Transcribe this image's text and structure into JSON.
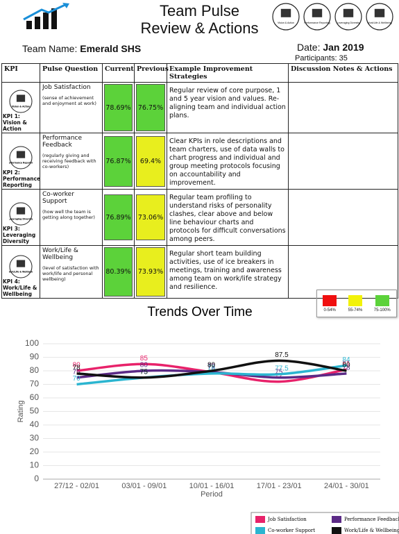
{
  "header": {
    "title_line1": "Team Pulse",
    "title_line2": "Review & Actions",
    "team_label": "Team Name:",
    "team_name": "Emerald SHS",
    "date_label": "Date:",
    "date": "Jan 2019",
    "participants_label": "Participants:",
    "participants": "35",
    "icons": [
      "Vision & Action",
      "Performance Reporting",
      "Leveraging Diversity",
      "Work/Life & Wellbeing"
    ]
  },
  "table": {
    "headers": [
      "KPI",
      "Pulse Question",
      "Current",
      "Previous",
      "Example Improvement Strategies",
      "Discussion Notes & Actions"
    ],
    "rows": [
      {
        "icon": "Vision & Action",
        "kpi": "KPI 1: Vision & Action",
        "question": "Job Satisfaction",
        "sub": "(sense of achievement and enjoyment at work)",
        "current": "78.69%",
        "current_color": "#5cd23a",
        "previous": "76.75%",
        "previous_color": "#5cd23a",
        "strategy": "Regular review of core purpose, 1 and 5 year vision and values. Re-aligning team and individual action plans.",
        "notes": ""
      },
      {
        "icon": "Performance Reporting",
        "kpi": "KPI 2: Performance Reporting",
        "question": "Performance Feedback",
        "sub": "(regularly giving and receiving feedback with co-workers)",
        "current": "76.87%",
        "current_color": "#5cd23a",
        "previous": "69.4%",
        "previous_color": "#e8ee1e",
        "strategy": "Clear KPIs in role descriptions and team charters, use of data walls to chart progress and individual and group meeting protocols focusing on accountability and improvement.",
        "notes": ""
      },
      {
        "icon": "Leveraging Diversity",
        "kpi": "KPI 3: Leveraging Diversity",
        "question": "Co-worker Support",
        "sub": "(how well the team is getting along together)",
        "current": "76.89%",
        "current_color": "#5cd23a",
        "previous": "73.06%",
        "previous_color": "#e8ee1e",
        "strategy": "Regular team profiling to understand risks of personality clashes, clear above and below line behaviour charts and protocols for difficult conversations among peers.",
        "notes": ""
      },
      {
        "icon": "Work/Life & Wellbeing",
        "kpi": "KPI 4: Work/Life & Wellbeing",
        "question": "Work/Life & Wellbeing",
        "sub": "(level of satisfaction with work/life and personal wellbeing)",
        "current": "80.39%",
        "current_color": "#5cd23a",
        "previous": "73.93%",
        "previous_color": "#e8ee1e",
        "strategy": "Regular short team building activities, use of ice breakers in meetings, training and awareness among team on work/life strategy and resilience.",
        "notes": ""
      }
    ]
  },
  "color_key": [
    {
      "label": "0-54%",
      "color": "#f01010"
    },
    {
      "label": "55-74%",
      "color": "#f2f20a"
    },
    {
      "label": "75-100%",
      "color": "#5cd23a"
    }
  ],
  "chart_data": {
    "type": "line",
    "title": "Trends Over Time",
    "x_label": "Period",
    "y_label": "Rating",
    "categories": [
      "27/12 - 02/01",
      "03/01 - 09/01",
      "10/01 - 16/01",
      "17/01 - 23/01",
      "24/01 - 30/01"
    ],
    "ylim": [
      0,
      100
    ],
    "yticks": [
      0,
      10,
      20,
      30,
      40,
      50,
      60,
      70,
      80,
      90,
      100
    ],
    "grid": true,
    "series": [
      {
        "name": "Job Satisfaction",
        "color": "#e8226a",
        "values": [
          80,
          85,
          79,
          72,
          81
        ]
      },
      {
        "name": "Performance Feedback",
        "color": "#5b2a86",
        "values": [
          75,
          80,
          79,
          75,
          78
        ]
      },
      {
        "name": "Co-worker Support",
        "color": "#2bb5d0",
        "values": [
          70,
          75,
          78,
          77.5,
          84
        ]
      },
      {
        "name": "Work/Life & Wellbeing",
        "color": "#111111",
        "values": [
          78,
          75,
          80,
          87.5,
          80
        ]
      }
    ]
  }
}
